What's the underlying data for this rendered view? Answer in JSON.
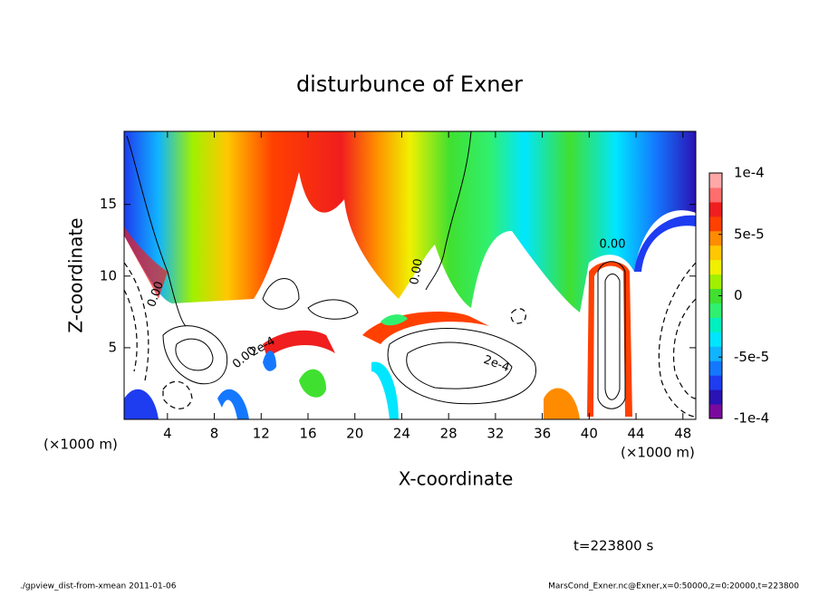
{
  "chart_data": {
    "type": "contour",
    "title": "disturbunce of Exner",
    "x_label": "X-coordinate",
    "y_label": "Z-coordinate",
    "x_unit": "(×1000 m)",
    "y_unit": "(×1000 m)",
    "xlim": [
      0.3,
      49.1
    ],
    "ylim": [
      0,
      20.1
    ],
    "xticks": [
      4,
      8,
      12,
      16,
      20,
      24,
      28,
      32,
      36,
      40,
      44,
      48
    ],
    "yticks": [
      5,
      10,
      15
    ],
    "colorbar": {
      "lim": [
        -0.0001,
        0.0001
      ],
      "ticks": [
        {
          "value": 0.0001,
          "label": "1e-4"
        },
        {
          "value": 5e-05,
          "label": "5e-5"
        },
        0,
        {
          "value": -5e-05,
          "label": "-5e-5"
        },
        {
          "value": -0.0001,
          "label": "-1e-4"
        }
      ],
      "colors": [
        "#7a0a9e",
        "#2a12b4",
        "#1e3cf0",
        "#1478ff",
        "#10b4ff",
        "#00e6ff",
        "#00f0c0",
        "#30f070",
        "#40e030",
        "#a0f000",
        "#f0f000",
        "#ffc800",
        "#ff8c00",
        "#ff4000",
        "#f01e1e",
        "#ff6e6e",
        "#ffa8a8"
      ]
    },
    "contour_labels": [
      "0.00",
      "0.00",
      "0.00",
      "0.00",
      "2e-4",
      "2e-4"
    ],
    "annotation": "t=223800 s",
    "footer_left": "./gpview_dist-from-xmean  2011-01-06",
    "footer_right": "MarsCond_Exner.nc@Exner,x=0:50000,z=0:20000,t=223800"
  }
}
